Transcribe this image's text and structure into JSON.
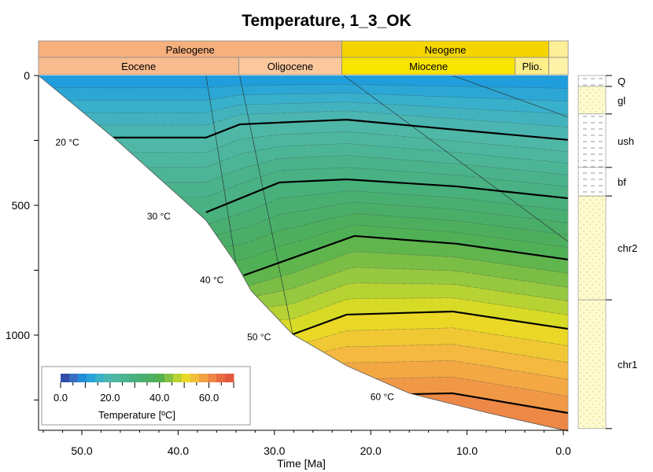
{
  "chart_data": {
    "type": "area",
    "title": "Temperature, 1_3_OK",
    "xlabel": "Time [Ma]",
    "ylabel": "",
    "xlim": [
      54.5,
      -0.5
    ],
    "ylim": [
      0,
      1370
    ],
    "x_ticks": [
      50,
      40,
      30,
      20,
      10,
      0
    ],
    "x_tick_labels": [
      "50.0",
      "40.0",
      "30.0",
      "20.0",
      "10.0",
      "0.0"
    ],
    "y_ticks": [
      0,
      500,
      1000
    ],
    "y_tick_labels": [
      "0",
      "500",
      "1000"
    ],
    "periods": [
      {
        "name": "Paleogene",
        "start": 54.5,
        "end": 23.0,
        "color": "#f5b07e"
      },
      {
        "name": "Neogene",
        "start": 23.0,
        "end": 1.5,
        "color": "#f5d500"
      },
      {
        "name": "",
        "start": 1.5,
        "end": -0.5,
        "color": "#fdef98"
      }
    ],
    "epochs": [
      {
        "name": "Eocene",
        "start": 54.5,
        "end": 33.7,
        "color": "#f8bc8e"
      },
      {
        "name": "Oligocene",
        "start": 33.7,
        "end": 23.0,
        "color": "#fbc89e"
      },
      {
        "name": "Miocene",
        "start": 23.0,
        "end": 5.0,
        "color": "#f7e400"
      },
      {
        "name": "Plio.",
        "start": 5.0,
        "end": 1.5,
        "color": "#fdee8a"
      },
      {
        "name": "",
        "start": 1.5,
        "end": -0.5,
        "color": "#fdf2a8"
      }
    ],
    "surface_temperature": 10,
    "basement": [
      [
        54.5,
        0
      ],
      [
        46.2,
        255
      ],
      [
        37.1,
        558
      ],
      [
        34.0,
        724
      ],
      [
        32.4,
        830
      ],
      [
        28.1,
        997
      ],
      [
        22.5,
        1118
      ],
      [
        16.0,
        1224
      ],
      [
        7.8,
        1300
      ],
      [
        -0.5,
        1370
      ]
    ],
    "isotherms": [
      {
        "temp": 20,
        "label": "20 °C",
        "label_at": [
          51.5,
          270
        ],
        "points": [
          [
            48.7,
            239
          ],
          [
            37.1,
            239
          ],
          [
            33.6,
            188
          ],
          [
            22.5,
            170
          ],
          [
            11.1,
            209
          ],
          [
            -0.5,
            248
          ]
        ]
      },
      {
        "temp": 30,
        "label": "30 °C",
        "label_at": [
          42.0,
          555
        ],
        "points": [
          [
            37.1,
            527
          ],
          [
            29.5,
            412
          ],
          [
            22.5,
            400
          ],
          [
            11.1,
            427
          ],
          [
            -0.5,
            473
          ]
        ]
      },
      {
        "temp": 40,
        "label": "40 °C",
        "label_at": [
          36.5,
          800
        ],
        "points": [
          [
            33.2,
            770
          ],
          [
            21.7,
            618
          ],
          [
            11.1,
            648
          ],
          [
            -0.5,
            709
          ]
        ]
      },
      {
        "temp": 50,
        "label": "50 °C",
        "label_at": [
          31.6,
          1020
        ],
        "points": [
          [
            28.1,
            997
          ],
          [
            22.5,
            921
          ],
          [
            11.5,
            909
          ],
          [
            -0.5,
            976
          ]
        ]
      },
      {
        "temp": 60,
        "label": "60 °C",
        "label_at": [
          18.8,
          1250
        ],
        "points": [
          [
            19.3,
            1230
          ],
          [
            11.5,
            1224
          ],
          [
            -0.5,
            1300
          ]
        ]
      }
    ],
    "colorbar": {
      "label": "Temperature [ºC]",
      "range": [
        0,
        70
      ],
      "tick_labels": [
        "0.0",
        "20.0",
        "40.0",
        "60.0"
      ],
      "ticks": [
        0,
        20,
        40,
        60
      ],
      "stops": [
        [
          0,
          "#2a3d9a"
        ],
        [
          5,
          "#3b6cc0"
        ],
        [
          10,
          "#1a98e0"
        ],
        [
          15,
          "#38b0cc"
        ],
        [
          20,
          "#50b8aa"
        ],
        [
          25,
          "#4cb596"
        ],
        [
          30,
          "#48b07e"
        ],
        [
          35,
          "#4aae68"
        ],
        [
          40,
          "#52b050"
        ],
        [
          45,
          "#96c840"
        ],
        [
          50,
          "#e8e020"
        ],
        [
          55,
          "#f5b840"
        ],
        [
          60,
          "#f09048"
        ],
        [
          65,
          "#e86a40"
        ],
        [
          70,
          "#e05040"
        ]
      ]
    },
    "lithology": [
      {
        "name": "Q",
        "top": 0,
        "base": 42,
        "color": "#ffffff",
        "pattern": "dash"
      },
      {
        "name": "gl",
        "top": 42,
        "base": 148,
        "color": "#fdfbcf",
        "pattern": "dot"
      },
      {
        "name": "ush",
        "top": 148,
        "base": 354,
        "color": "#ffffff",
        "pattern": "dash"
      },
      {
        "name": "bf",
        "top": 354,
        "base": 464,
        "color": "#ffffff",
        "pattern": "dash"
      },
      {
        "name": "chr2",
        "top": 464,
        "base": 864,
        "color": "#fdfbcf",
        "pattern": "dot"
      },
      {
        "name": "chr1",
        "top": 864,
        "base": 1360,
        "color": "#fdfbcf",
        "pattern": "dot"
      }
    ]
  }
}
